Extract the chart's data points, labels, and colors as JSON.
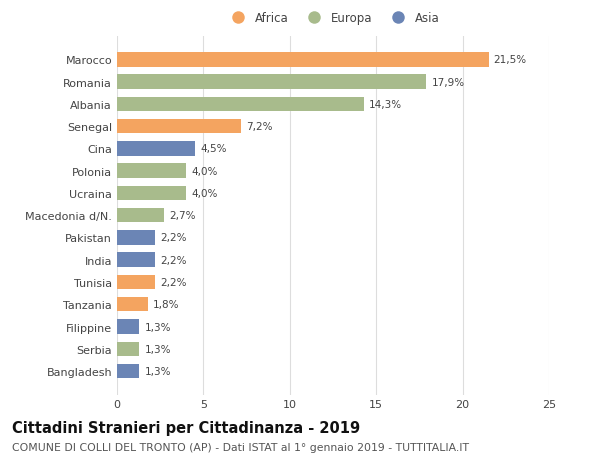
{
  "countries": [
    "Bangladesh",
    "Serbia",
    "Filippine",
    "Tanzania",
    "Tunisia",
    "India",
    "Pakistan",
    "Macedonia d/N.",
    "Ucraina",
    "Polonia",
    "Cina",
    "Senegal",
    "Albania",
    "Romania",
    "Marocco"
  ],
  "values": [
    1.3,
    1.3,
    1.3,
    1.8,
    2.2,
    2.2,
    2.2,
    2.7,
    4.0,
    4.0,
    4.5,
    7.2,
    14.3,
    17.9,
    21.5
  ],
  "labels": [
    "1,3%",
    "1,3%",
    "1,3%",
    "1,8%",
    "2,2%",
    "2,2%",
    "2,2%",
    "2,7%",
    "4,0%",
    "4,0%",
    "4,5%",
    "7,2%",
    "14,3%",
    "17,9%",
    "21,5%"
  ],
  "continents": [
    "Asia",
    "Europa",
    "Asia",
    "Africa",
    "Africa",
    "Asia",
    "Asia",
    "Europa",
    "Europa",
    "Europa",
    "Asia",
    "Africa",
    "Europa",
    "Europa",
    "Africa"
  ],
  "colors": {
    "Africa": "#F4A460",
    "Europa": "#A8BB8C",
    "Asia": "#6B85B5"
  },
  "title": "Cittadini Stranieri per Cittadinanza - 2019",
  "subtitle": "COMUNE DI COLLI DEL TRONTO (AP) - Dati ISTAT al 1° gennaio 2019 - TUTTITALIA.IT",
  "xlim": [
    0,
    25
  ],
  "xticks": [
    0,
    5,
    10,
    15,
    20,
    25
  ],
  "background_color": "#ffffff",
  "bar_height": 0.65,
  "title_fontsize": 10.5,
  "subtitle_fontsize": 7.8,
  "label_fontsize": 7.5,
  "tick_fontsize": 8,
  "legend_fontsize": 8.5,
  "text_color": "#444444",
  "grid_color": "#dddddd"
}
